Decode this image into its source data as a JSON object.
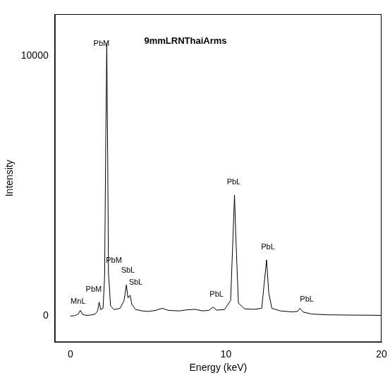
{
  "chart_data": {
    "type": "line",
    "title": "9mmLRNThaiArms",
    "x_label": "Energy (keV)",
    "y_label": "Intensity",
    "color": "#000000",
    "grid": false,
    "xlim": [
      -1,
      20
    ],
    "ylim": [
      -1000,
      11600
    ],
    "xticks": [
      0,
      10,
      20
    ],
    "yticks": [
      0,
      10000
    ],
    "x": [
      0.0,
      0.3,
      0.5,
      0.64,
      0.8,
      1.0,
      1.3,
      1.6,
      1.75,
      1.85,
      1.95,
      2.1,
      2.2,
      2.28,
      2.34,
      2.4,
      2.45,
      2.5,
      2.58,
      2.8,
      3.2,
      3.45,
      3.6,
      3.7,
      3.84,
      3.95,
      4.2,
      4.6,
      5.0,
      5.5,
      5.9,
      6.3,
      7.0,
      7.5,
      8.0,
      8.5,
      8.9,
      9.18,
      9.4,
      9.9,
      10.3,
      10.45,
      10.55,
      10.65,
      10.8,
      11.2,
      11.8,
      12.3,
      12.45,
      12.61,
      12.75,
      12.95,
      13.5,
      14.3,
      14.6,
      14.76,
      14.95,
      15.5,
      16.5,
      18.0,
      20.0
    ],
    "values": [
      0,
      20,
      80,
      220,
      60,
      30,
      40,
      80,
      200,
      540,
      250,
      300,
      1500,
      7000,
      10500,
      6000,
      1600,
      1200,
      400,
      250,
      300,
      600,
      1200,
      700,
      800,
      450,
      250,
      200,
      180,
      220,
      300,
      220,
      200,
      240,
      260,
      200,
      220,
      350,
      230,
      250,
      600,
      3000,
      4650,
      2800,
      500,
      280,
      260,
      300,
      1200,
      2160,
      900,
      300,
      200,
      160,
      180,
      300,
      160,
      80,
      50,
      40,
      30
    ],
    "annotations": [
      {
        "text": "MnL",
        "x": 0.5,
        "y": 400
      },
      {
        "text": "PbM",
        "x": 1.5,
        "y": 860
      },
      {
        "text": "PbM",
        "x": 2.0,
        "y": 10300
      },
      {
        "text": "PbM",
        "x": 2.8,
        "y": 1970
      },
      {
        "text": "SbL",
        "x": 3.7,
        "y": 1600
      },
      {
        "text": "SbL",
        "x": 4.2,
        "y": 1130
      },
      {
        "text": "PbL",
        "x": 9.4,
        "y": 680
      },
      {
        "text": "PbL",
        "x": 10.5,
        "y": 5000
      },
      {
        "text": "PbL",
        "x": 12.7,
        "y": 2500
      },
      {
        "text": "PbL",
        "x": 15.2,
        "y": 480
      }
    ]
  }
}
